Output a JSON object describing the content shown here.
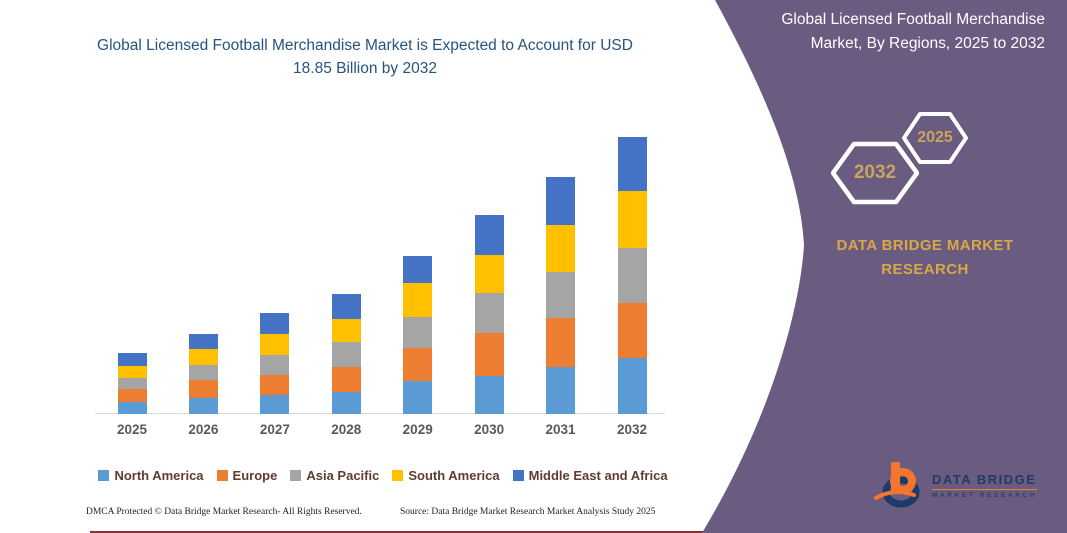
{
  "chart": {
    "title": "Global Licensed Football Merchandise Market is Expected to Account for USD 18.85 Billion by 2032"
  },
  "chart_data": {
    "type": "bar",
    "stacked": true,
    "title": "Global Licensed Football Merchandise Market is Expected to Account for USD 18.85 Billion by 2032",
    "unit": "USD Billion",
    "categories": [
      "2025",
      "2026",
      "2027",
      "2028",
      "2029",
      "2030",
      "2031",
      "2032"
    ],
    "series": [
      {
        "name": "North America",
        "color": "#5B9BD5",
        "values": [
          0.8,
          1.07,
          1.29,
          1.52,
          2.27,
          2.59,
          3.22,
          3.79
        ]
      },
      {
        "name": "Europe",
        "color": "#ED7D31",
        "values": [
          0.88,
          1.24,
          1.36,
          1.7,
          2.2,
          2.95,
          3.29,
          3.78
        ]
      },
      {
        "name": "Asia Pacific",
        "color": "#A5A5A5",
        "values": [
          0.75,
          1.02,
          1.36,
          1.7,
          2.16,
          2.67,
          3.18,
          3.76
        ]
      },
      {
        "name": "South America",
        "color": "#FFC000",
        "values": [
          0.86,
          1.07,
          1.41,
          1.52,
          2.27,
          2.61,
          3.18,
          3.86
        ]
      },
      {
        "name": "Middle East and Africa",
        "color": "#4472C4",
        "values": [
          0.84,
          1.02,
          1.43,
          1.7,
          1.86,
          2.7,
          3.29,
          3.66
        ]
      }
    ],
    "totals": [
      4.13,
      5.42,
      6.85,
      8.14,
      10.76,
      13.52,
      16.16,
      18.85
    ],
    "ylim": [
      0,
      19
    ],
    "grid": false,
    "legend_position": "bottom",
    "xlabel": "",
    "ylabel": ""
  },
  "footer": {
    "dmca": "DMCA Protected © Data Bridge Market Research-  All Rights Reserved.",
    "source": "Source: Data Bridge Market Research  Market Analysis Study 2025"
  },
  "panel": {
    "title": "Global Licensed Football Merchandise Market, By Regions, 2025 to 2032",
    "hexagons": [
      {
        "label": "2032"
      },
      {
        "label": "2025"
      }
    ],
    "brand": "DATA BRIDGE MARKET RESEARCH",
    "logo": {
      "primary": "DATA BRIDGE",
      "secondary": "MARKET RESEARCH"
    },
    "background_color": "#6a5b80",
    "accent_gold": "#d8a845",
    "hex_text_color": "#c9a45c"
  },
  "colors": {
    "chart_title": "#27537e",
    "axis_labels": "#595959",
    "legend_text": "#5e3c34",
    "logo_orange": "#f07f2d",
    "logo_navy": "#233a66"
  }
}
